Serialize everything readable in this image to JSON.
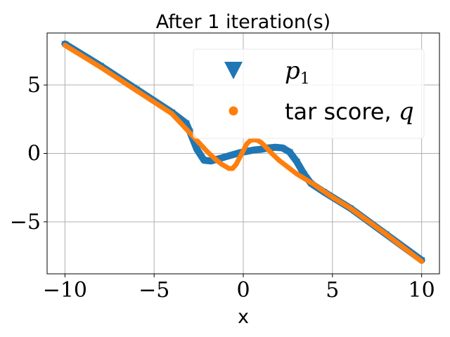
{
  "chart_data": {
    "type": "scatter",
    "title": "After 1 iteration(s)",
    "xlabel": "x",
    "ylabel": "",
    "xlim": [
      -11.0,
      11.0
    ],
    "ylim": [
      -8.8,
      8.8
    ],
    "xticks": [
      -10,
      -5,
      0,
      5,
      10
    ],
    "yticks": [
      -5,
      0,
      5
    ],
    "xtick_labels": [
      "−10",
      "−5",
      "0",
      "5",
      "10"
    ],
    "ytick_labels": [
      "−5",
      "0",
      "5"
    ],
    "grid": true,
    "legend": {
      "placement": "top-right",
      "entries": [
        {
          "label_text": "",
          "math": "p",
          "math_sub": "1",
          "marker": "triangle-down",
          "color": "#1f77b4"
        },
        {
          "label_text": "tar score, ",
          "math": "q",
          "math_sub": "",
          "marker": "circle",
          "color": "#ff7f0e"
        }
      ]
    },
    "series": [
      {
        "name": "p1",
        "color": "#1f77b4",
        "marker": "triangle-down",
        "x": [
          -10,
          -8,
          -6,
          -4,
          -3.2,
          -3,
          -2.6,
          -2.2,
          -1.8,
          -1.4,
          -1,
          -0.6,
          -0.2,
          0.2,
          0.6,
          1,
          1.4,
          1.8,
          2.2,
          2.6,
          3,
          3.4,
          3.8,
          4.5,
          6,
          8,
          10
        ],
        "y": [
          8,
          6.4,
          4.7,
          3.0,
          2.2,
          1.6,
          0.3,
          -0.5,
          -0.55,
          -0.4,
          -0.25,
          -0.1,
          0.05,
          0.15,
          0.25,
          0.3,
          0.4,
          0.45,
          0.4,
          0.1,
          -0.6,
          -1.5,
          -2.2,
          -2.8,
          -4.0,
          -5.9,
          -7.8
        ]
      },
      {
        "name": "tar score, q",
        "color": "#ff7f0e",
        "marker": "circle",
        "x": [
          -10,
          -8,
          -6,
          -4,
          -3,
          -2.5,
          -2,
          -1.5,
          -1.2,
          -0.8,
          -0.6,
          -0.4,
          -0.2,
          0,
          0.2,
          0.4,
          0.6,
          0.8,
          1.0,
          1.2,
          1.6,
          2,
          2.5,
          3,
          3.5,
          4,
          5,
          6,
          8,
          10
        ],
        "y": [
          7.9,
          6.3,
          4.6,
          2.9,
          1.5,
          0.8,
          0.1,
          -0.5,
          -0.8,
          -1.1,
          -1.1,
          -0.8,
          -0.3,
          0.2,
          0.7,
          0.95,
          1.0,
          0.95,
          0.8,
          0.55,
          0.0,
          -0.5,
          -1.0,
          -1.5,
          -1.9,
          -2.3,
          -3.2,
          -4.0,
          -5.9,
          -7.9
        ]
      }
    ]
  }
}
